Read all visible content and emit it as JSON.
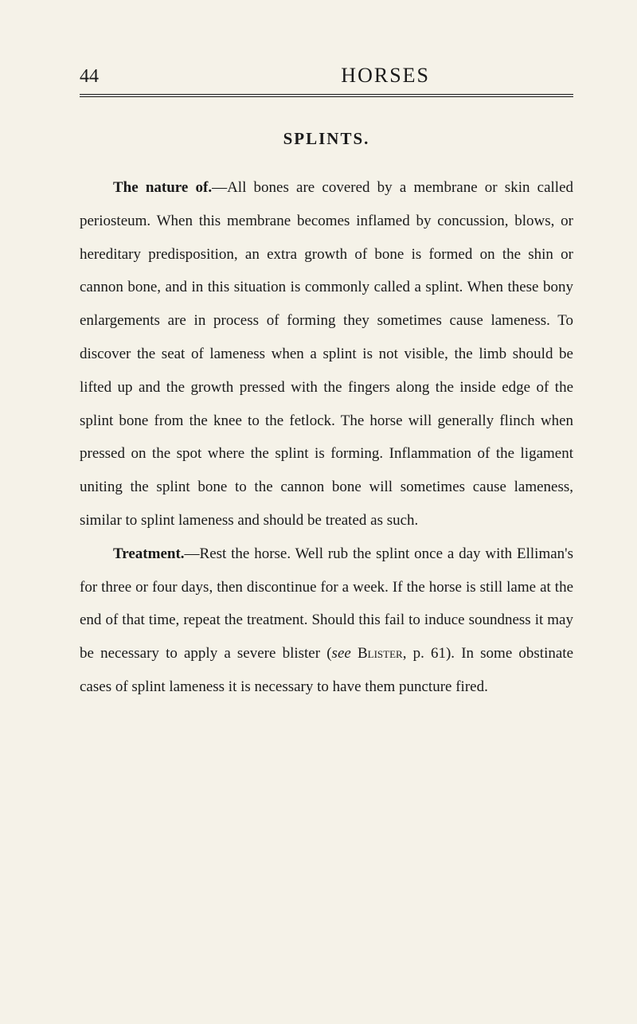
{
  "header": {
    "page_number": "44",
    "title": "HORSES"
  },
  "section": {
    "heading": "SPLINTS."
  },
  "paragraphs": {
    "p1_lead": "The nature of.",
    "p1_body": "—All bones are covered by a membrane or skin called periosteum. When this membrane becomes inflamed by concussion, blows, or hereditary predisposition, an extra growth of bone is formed on the shin or cannon bone, and in this situation is commonly called a splint. When these bony enlargements are in process of forming they sometimes cause lameness. To discover the seat of lameness when a splint is not visible, the limb should be lifted up and the growth pressed with the fingers along the inside edge of the splint bone from the knee to the fetlock. The horse will generally flinch when pressed on the spot where the splint is forming. Inflammation of the ligament uniting the splint bone to the cannon bone will sometimes cause lameness, similar to splint lameness and should be treated as such.",
    "p2_lead": "Treatment.",
    "p2_body_a": "—Rest the horse. Well rub the splint once a day with Elliman's for three or four days, then discontinue for a week. If the horse is still lame at the end of that time, repeat the treatment. Should this fail to induce soundness it may be necessary to apply a severe blister (",
    "p2_see": "see",
    "p2_blister": " Blister",
    "p2_body_b": ", p. 61). In some obstinate cases of splint lameness it is necessary to have them puncture fired."
  },
  "styling": {
    "background_color": "#f5f2e8",
    "text_color": "#1a1a1a",
    "body_font_size": 19,
    "line_height": 2.2,
    "heading_font_size": 21,
    "page_number_font_size": 24,
    "title_font_size": 26
  }
}
